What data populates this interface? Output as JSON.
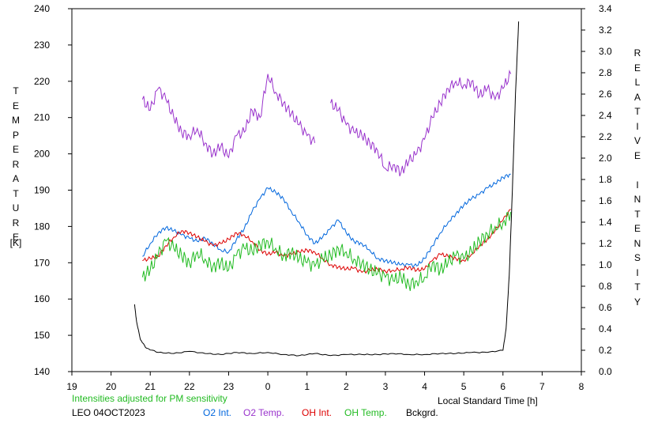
{
  "chart_data": {
    "type": "line",
    "xlabel": "Local Standard Time [h]",
    "ylabel_left": "TEMPERATURE",
    "ylabel_left_unit": "[K]",
    "ylabel_right": "RELATIVE INTENSITY",
    "x_ticks": [
      "19",
      "20",
      "21",
      "22",
      "23",
      "0",
      "1",
      "2",
      "3",
      "4",
      "5",
      "6",
      "7",
      "8"
    ],
    "y_left_ticks": [
      "140",
      "150",
      "160",
      "170",
      "180",
      "190",
      "200",
      "210",
      "220",
      "230",
      "240"
    ],
    "y_right_ticks": [
      "0.0",
      "0.2",
      "0.4",
      "0.6",
      "0.8",
      "1.0",
      "1.2",
      "1.4",
      "1.6",
      "1.8",
      "2.0",
      "2.2",
      "2.4",
      "2.6",
      "2.8",
      "3.0",
      "3.2",
      "3.4"
    ],
    "xlim": [
      19,
      32
    ],
    "ylim_left": [
      140,
      240
    ],
    "ylim_right": [
      0,
      3.4
    ],
    "note": "Intensities adjusted for PM sensitivity",
    "station_date": "LEO 04OCT2023",
    "colors": {
      "O2 Int.": "#0066dd",
      "O2 Temp.": "#9933cc",
      "OH Int.": "#dd0000",
      "OH Temp.": "#22bb22",
      "Bckgrd.": "#000000",
      "note": "#22bb22"
    },
    "legend": [
      "O2 Int.",
      "O2 Temp.",
      "OH Int.",
      "OH Temp.",
      "Bckgrd."
    ],
    "series": [
      {
        "name": "O2 Temp.",
        "axis": "left",
        "x": [
          20.8,
          21.0,
          21.2,
          21.4,
          21.6,
          21.8,
          22.0,
          22.2,
          22.4,
          22.6,
          22.8,
          23.0,
          23.2,
          23.4,
          23.6,
          23.8,
          24.0,
          24.2,
          24.4,
          24.6,
          24.8,
          25.0,
          25.2,
          25.4,
          25.6,
          25.8,
          26.0,
          26.2,
          26.4,
          26.6,
          26.8,
          27.0,
          27.2,
          27.4,
          27.6,
          27.8,
          28.0,
          28.2,
          28.4,
          28.6,
          28.8,
          29.0,
          29.2,
          29.4,
          29.6,
          29.8,
          30.0,
          30.2
        ],
        "y": [
          215,
          212,
          218,
          215,
          210,
          206,
          205,
          207,
          203,
          200,
          202,
          199,
          205,
          206,
          212,
          210,
          222,
          217,
          214,
          211,
          208,
          205,
          203,
          null,
          214,
          212,
          208,
          206,
          205,
          203,
          201,
          196,
          197,
          195,
          198,
          200,
          204,
          210,
          214,
          218,
          220,
          219,
          220,
          216,
          218,
          215,
          218,
          222
        ]
      },
      {
        "name": "O2 Int.",
        "axis": "right",
        "x": [
          20.8,
          21.0,
          21.2,
          21.4,
          21.6,
          21.8,
          22.0,
          22.2,
          22.4,
          22.6,
          22.8,
          23.0,
          23.2,
          23.4,
          23.6,
          23.8,
          24.0,
          24.2,
          24.4,
          24.6,
          24.8,
          25.0,
          25.2,
          25.4,
          25.6,
          25.8,
          26.0,
          26.2,
          26.4,
          26.6,
          26.8,
          27.0,
          27.2,
          27.4,
          27.6,
          27.8,
          28.0,
          28.2,
          28.4,
          28.6,
          28.8,
          29.0,
          29.2,
          29.4,
          29.6,
          29.8,
          30.0,
          30.2
        ],
        "y": [
          1.08,
          1.2,
          1.3,
          1.35,
          1.32,
          1.28,
          1.25,
          1.22,
          1.25,
          1.2,
          1.14,
          1.12,
          1.24,
          1.34,
          1.5,
          1.62,
          1.72,
          1.68,
          1.62,
          1.5,
          1.4,
          1.28,
          1.2,
          1.26,
          1.34,
          1.42,
          1.3,
          1.22,
          1.2,
          1.14,
          1.06,
          1.04,
          1.02,
          1.0,
          1.0,
          0.99,
          1.06,
          1.18,
          1.3,
          1.4,
          1.48,
          1.56,
          1.62,
          1.66,
          1.72,
          1.76,
          1.82,
          1.85
        ]
      },
      {
        "name": "OH Int.",
        "axis": "right",
        "x": [
          20.8,
          21.0,
          21.2,
          21.4,
          21.6,
          21.8,
          22.0,
          22.2,
          22.4,
          22.6,
          22.8,
          23.0,
          23.2,
          23.4,
          23.6,
          23.8,
          24.0,
          24.2,
          24.4,
          24.6,
          24.8,
          25.0,
          25.2,
          25.4,
          25.6,
          25.8,
          26.0,
          26.2,
          26.4,
          26.6,
          26.8,
          27.0,
          27.2,
          27.4,
          27.6,
          27.8,
          28.0,
          28.2,
          28.4,
          28.6,
          28.8,
          29.0,
          29.2,
          29.4,
          29.6,
          29.8,
          30.0,
          30.2
        ],
        "y": [
          1.04,
          1.06,
          1.08,
          1.18,
          1.26,
          1.32,
          1.3,
          1.26,
          1.22,
          1.18,
          1.2,
          1.24,
          1.3,
          1.28,
          1.22,
          1.14,
          1.1,
          1.12,
          1.08,
          1.1,
          1.12,
          1.14,
          1.12,
          1.06,
          1.0,
          0.98,
          0.96,
          0.97,
          0.93,
          0.95,
          0.96,
          0.94,
          0.95,
          0.96,
          0.98,
          0.95,
          0.96,
          1.04,
          1.1,
          1.08,
          1.06,
          1.04,
          1.1,
          1.18,
          1.24,
          1.32,
          1.42,
          1.52
        ]
      },
      {
        "name": "OH Temp.",
        "axis": "left",
        "x": [
          20.8,
          21.0,
          21.2,
          21.4,
          21.6,
          21.8,
          22.0,
          22.2,
          22.4,
          22.6,
          22.8,
          23.0,
          23.2,
          23.4,
          23.6,
          23.8,
          24.0,
          24.2,
          24.4,
          24.6,
          24.8,
          25.0,
          25.2,
          25.4,
          25.6,
          25.8,
          26.0,
          26.2,
          26.4,
          26.6,
          26.8,
          27.0,
          27.2,
          27.4,
          27.6,
          27.8,
          28.0,
          28.2,
          28.4,
          28.6,
          28.8,
          29.0,
          29.2,
          29.4,
          29.6,
          29.8,
          30.0,
          30.2
        ],
        "y": [
          166,
          168,
          172,
          176,
          174,
          172,
          170,
          173,
          171,
          169,
          170,
          168,
          172,
          174,
          173,
          175,
          176,
          174,
          172,
          173,
          171,
          170,
          169,
          171,
          172,
          174,
          173,
          171,
          170,
          168,
          167,
          166,
          165,
          166,
          164,
          165,
          166,
          170,
          168,
          170,
          172,
          171,
          173,
          176,
          178,
          180,
          181,
          184
        ]
      },
      {
        "name": "Bckgrd.",
        "axis": "right",
        "x": [
          20.6,
          20.65,
          20.75,
          20.9,
          21.2,
          21.6,
          22.0,
          22.4,
          22.8,
          23.2,
          23.6,
          24.0,
          24.4,
          24.8,
          25.2,
          25.6,
          26.0,
          26.4,
          26.8,
          27.2,
          27.6,
          28.0,
          28.4,
          28.8,
          29.2,
          29.6,
          30.0,
          30.08,
          30.16,
          30.24,
          30.32,
          30.4
        ],
        "y": [
          0.63,
          0.47,
          0.3,
          0.22,
          0.18,
          0.17,
          0.19,
          0.17,
          0.16,
          0.18,
          0.17,
          0.18,
          0.16,
          0.15,
          0.17,
          0.15,
          0.16,
          0.16,
          0.16,
          0.17,
          0.16,
          0.16,
          0.17,
          0.17,
          0.18,
          0.18,
          0.2,
          0.4,
          0.9,
          1.7,
          2.6,
          3.28
        ]
      }
    ]
  }
}
